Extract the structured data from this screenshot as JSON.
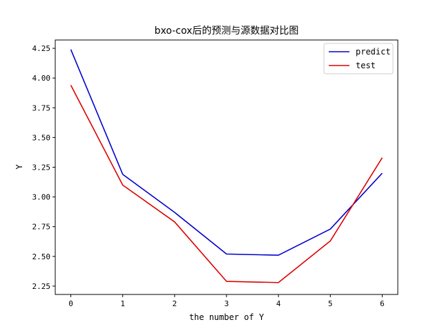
{
  "chart_data": {
    "type": "line",
    "title": "bxo-cox后的预测与源数据对比图",
    "xlabel": "the number of Y",
    "ylabel": "Y",
    "x": [
      0,
      1,
      2,
      3,
      4,
      5,
      6
    ],
    "xlim": [
      -0.3,
      6.3
    ],
    "ylim": [
      2.18,
      4.32
    ],
    "xticks": [
      "0",
      "1",
      "2",
      "3",
      "4",
      "5",
      "6"
    ],
    "yticks": [
      "2.25",
      "2.50",
      "2.75",
      "3.00",
      "3.25",
      "3.50",
      "3.75",
      "4.00",
      "4.25"
    ],
    "grid": false,
    "legend_position": "top-right",
    "series": [
      {
        "name": "predict",
        "color": "#0000cc",
        "values": [
          4.24,
          3.19,
          2.87,
          2.52,
          2.51,
          2.73,
          3.2
        ]
      },
      {
        "name": "test",
        "color": "#dd0000",
        "values": [
          3.94,
          3.1,
          2.79,
          2.29,
          2.28,
          2.63,
          3.33
        ]
      }
    ]
  }
}
